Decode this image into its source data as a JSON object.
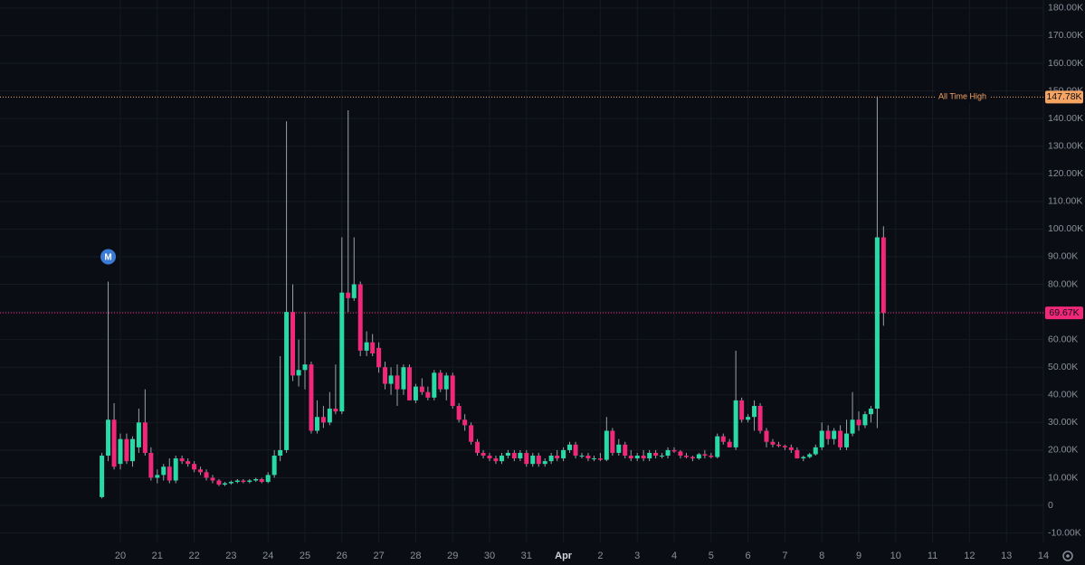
{
  "chart_data": {
    "type": "candlestick",
    "up_color": "#2ad9a8",
    "down_color": "#f0287a",
    "grid": true,
    "x": [
      19.5,
      19.67,
      19.83,
      20,
      20.17,
      20.33,
      20.5,
      20.67,
      20.83,
      21,
      21.17,
      21.33,
      21.5,
      21.67,
      21.83,
      22,
      22.17,
      22.33,
      22.5,
      22.67,
      22.83,
      23,
      23.17,
      23.33,
      23.5,
      23.67,
      23.83,
      24,
      24.17,
      24.33,
      24.5,
      24.67,
      24.83,
      25,
      25.17,
      25.33,
      25.5,
      25.67,
      25.83,
      26,
      26.17,
      26.33,
      26.5,
      26.67,
      26.83,
      27,
      27.17,
      27.33,
      27.5,
      27.67,
      27.83,
      28,
      28.17,
      28.33,
      28.5,
      28.67,
      28.83,
      29,
      29.17,
      29.33,
      29.5,
      29.67,
      29.83,
      30,
      30.17,
      30.33,
      30.5,
      30.67,
      30.83,
      31,
      31.17,
      31.33,
      31.5,
      31.67,
      31.83,
      32,
      32.17,
      32.33,
      32.5,
      32.67,
      32.83,
      33,
      33.17,
      33.33,
      33.5,
      33.67,
      33.83,
      34,
      34.17,
      34.33,
      34.5,
      34.67,
      34.83,
      35,
      35.17,
      35.33,
      35.5,
      35.67,
      35.83,
      36,
      36.17,
      36.33,
      36.5,
      36.67,
      36.83,
      37,
      37.17,
      37.33,
      37.5,
      37.67,
      37.83,
      38,
      38.17,
      38.33,
      38.5,
      38.67,
      38.83,
      39,
      39.17,
      39.33,
      39.5,
      39.67,
      39.83,
      40,
      40.17,
      40.33,
      40.5,
      40.67
    ],
    "open": [
      3000,
      18000,
      31000,
      15000,
      24000,
      16000,
      21000,
      30000,
      19000,
      10000,
      11000,
      14000,
      9000,
      17000,
      16000,
      15000,
      13000,
      12000,
      10000,
      9000,
      7500,
      8000,
      8500,
      9000,
      8500,
      9000,
      9500,
      8500,
      11000,
      18000,
      20000,
      70000,
      47000,
      49000,
      51000,
      27000,
      32000,
      30000,
      35000,
      34000,
      77000,
      75000,
      80000,
      56000,
      59000,
      57000,
      50000,
      44000,
      47000,
      42000,
      50000,
      38000,
      43000,
      41000,
      39000,
      48000,
      42000,
      47000,
      36000,
      31000,
      29000,
      23000,
      19000,
      18000,
      17000,
      16000,
      18000,
      19000,
      17000,
      19000,
      15000,
      18000,
      15000,
      16000,
      18000,
      17000,
      20000,
      22000,
      18000,
      18000,
      17000,
      17000,
      16500,
      27000,
      19000,
      22000,
      18000,
      17000,
      18000,
      17000,
      19000,
      18000,
      18000,
      20000,
      19500,
      18000,
      17500,
      17000,
      18500,
      18000,
      17500,
      25000,
      23000,
      21000,
      38000,
      31000,
      32000,
      36000,
      27000,
      23000,
      22000,
      21500,
      21000,
      20000,
      17000,
      17500,
      18500,
      21000,
      27000,
      24000,
      27000,
      21000,
      26000,
      31000,
      29000,
      33000,
      35000,
      97000
    ],
    "high": [
      19000,
      81000,
      37000,
      26000,
      26000,
      25000,
      35000,
      42000,
      21000,
      13000,
      15000,
      17000,
      18000,
      18000,
      17000,
      16000,
      14000,
      13000,
      11000,
      9500,
      8500,
      9000,
      9500,
      9500,
      9500,
      10000,
      10000,
      12000,
      20000,
      54000,
      139000,
      80000,
      60000,
      70000,
      52000,
      38000,
      36000,
      41000,
      51000,
      97000,
      143000,
      97000,
      81000,
      63000,
      62000,
      59000,
      52000,
      50000,
      51000,
      51000,
      51000,
      44000,
      46000,
      43000,
      49000,
      49000,
      48000,
      48000,
      37000,
      33000,
      30000,
      24000,
      20000,
      19000,
      18000,
      19000,
      20000,
      20000,
      20000,
      20000,
      19000,
      19000,
      17000,
      19000,
      20000,
      21000,
      23000,
      23000,
      19000,
      19000,
      18000,
      19000,
      32000,
      28000,
      24000,
      23000,
      20000,
      19000,
      20000,
      20000,
      20000,
      19000,
      21000,
      21000,
      20000,
      19000,
      18000,
      19000,
      20000,
      19000,
      26000,
      26000,
      24000,
      56000,
      39000,
      33000,
      38000,
      37000,
      28000,
      24000,
      23000,
      22000,
      22000,
      21000,
      18000,
      19000,
      22000,
      30000,
      29000,
      28000,
      29000,
      31000,
      41000,
      34000,
      34000,
      36000,
      148000,
      101000
    ],
    "low": [
      2500,
      16000,
      13000,
      13000,
      15000,
      14000,
      19000,
      18000,
      9000,
      8000,
      9000,
      8000,
      8000,
      15000,
      14000,
      12000,
      11000,
      9000,
      8000,
      7000,
      7000,
      7500,
      8000,
      8000,
      8000,
      8500,
      8000,
      8000,
      10000,
      16000,
      19000,
      45000,
      43000,
      42000,
      26000,
      26000,
      28000,
      29000,
      33000,
      33000,
      70000,
      74000,
      54000,
      54000,
      54000,
      48000,
      42000,
      40000,
      36000,
      40000,
      38000,
      37000,
      40000,
      38000,
      38000,
      41000,
      38000,
      35000,
      30000,
      27000,
      22000,
      18000,
      17000,
      16000,
      15000,
      15000,
      17000,
      16000,
      16000,
      14000,
      14000,
      14000,
      14000,
      15000,
      16000,
      16000,
      19000,
      17000,
      17000,
      16000,
      16000,
      16000,
      16000,
      18000,
      18000,
      17000,
      16000,
      16000,
      16000,
      16000,
      17000,
      17000,
      17000,
      19000,
      17000,
      17000,
      16000,
      16500,
      17000,
      17000,
      17000,
      22000,
      21000,
      20000,
      30000,
      30000,
      27000,
      26000,
      21000,
      21000,
      21000,
      20000,
      19000,
      17000,
      16000,
      17000,
      18000,
      20000,
      22000,
      22000,
      20000,
      20000,
      25000,
      27000,
      28000,
      30000,
      28000,
      65000
    ],
    "close": [
      18000,
      31000,
      14000,
      24000,
      16000,
      24000,
      30000,
      19000,
      10000,
      11000,
      14000,
      9000,
      17000,
      16000,
      15000,
      13000,
      12000,
      10000,
      9000,
      7500,
      8000,
      8500,
      9000,
      8500,
      9000,
      9500,
      8500,
      11000,
      18000,
      20000,
      70000,
      47000,
      49000,
      51000,
      27000,
      32000,
      30000,
      35000,
      34000,
      77000,
      75000,
      80000,
      56000,
      59000,
      55000,
      50000,
      44000,
      47000,
      42000,
      50000,
      38000,
      43000,
      41000,
      39000,
      48000,
      42000,
      47000,
      36000,
      31000,
      29000,
      23000,
      19000,
      18000,
      17000,
      16000,
      18000,
      19000,
      17000,
      19000,
      15000,
      18000,
      15000,
      16000,
      18000,
      17000,
      20000,
      22000,
      18000,
      18000,
      17000,
      17000,
      16500,
      27000,
      19000,
      22000,
      18000,
      17000,
      18000,
      17000,
      19000,
      18000,
      18000,
      20000,
      19500,
      18000,
      17500,
      17000,
      18500,
      18000,
      17500,
      25000,
      23000,
      21000,
      38000,
      31000,
      32000,
      36000,
      27000,
      23000,
      22000,
      21500,
      21000,
      20000,
      17000,
      17500,
      18500,
      21000,
      27000,
      24000,
      27000,
      21000,
      26000,
      31000,
      29000,
      33000,
      35000,
      97000,
      69670
    ],
    "xlim": [
      16.74,
      45
    ],
    "xticks": [
      20,
      21,
      22,
      23,
      24,
      25,
      26,
      27,
      28,
      29,
      30,
      31,
      {
        "value": 32,
        "label": "Apr"
      },
      {
        "value": 33,
        "label": "2"
      },
      {
        "value": 34,
        "label": "3"
      },
      {
        "value": 35,
        "label": "4"
      },
      {
        "value": 36,
        "label": "5"
      },
      {
        "value": 37,
        "label": "6"
      },
      {
        "value": 38,
        "label": "7"
      },
      {
        "value": 39,
        "label": "8"
      },
      {
        "value": 40,
        "label": "9"
      },
      {
        "value": 41,
        "label": "10"
      },
      {
        "value": 42,
        "label": "11"
      },
      {
        "value": 43,
        "label": "12"
      },
      {
        "value": 44,
        "label": "13"
      },
      {
        "value": 45,
        "label": "14"
      }
    ],
    "ylim": [
      -13400,
      182900
    ],
    "yticks": [
      {
        "value": -10000,
        "label": "-10.00K"
      },
      0,
      {
        "value": 10000,
        "label": "10.00K"
      },
      {
        "value": 20000,
        "label": "20.00K"
      },
      {
        "value": 30000,
        "label": "30.00K"
      },
      {
        "value": 40000,
        "label": "40.00K"
      },
      {
        "value": 50000,
        "label": "50.00K"
      },
      {
        "value": 60000,
        "label": "60.00K"
      },
      {
        "value": 70000,
        "label": "70.00K"
      },
      {
        "value": 80000,
        "label": "80.00K"
      },
      {
        "value": 90000,
        "label": "90.00K"
      },
      {
        "value": 100000,
        "label": "100.00K"
      },
      {
        "value": 110000,
        "label": "110.00K"
      },
      {
        "value": 120000,
        "label": "120.00K"
      },
      {
        "value": 130000,
        "label": "130.00K"
      },
      {
        "value": 140000,
        "label": "140.00K"
      },
      {
        "value": 150000,
        "label": "150.00K"
      },
      {
        "value": 160000,
        "label": "160.00K"
      },
      {
        "value": 170000,
        "label": "170.00K"
      },
      {
        "value": 180000,
        "label": "180.00K"
      }
    ],
    "price_lines": [
      {
        "label": "All Time High",
        "value": 147780,
        "value_label": "147.78K",
        "color": "#f5a462"
      },
      {
        "value": 69670,
        "value_label": "69.67K",
        "color": "#f0287a"
      }
    ],
    "markers": [
      {
        "x": 19.67,
        "label": "M",
        "color": "#3a7bd5"
      }
    ]
  }
}
